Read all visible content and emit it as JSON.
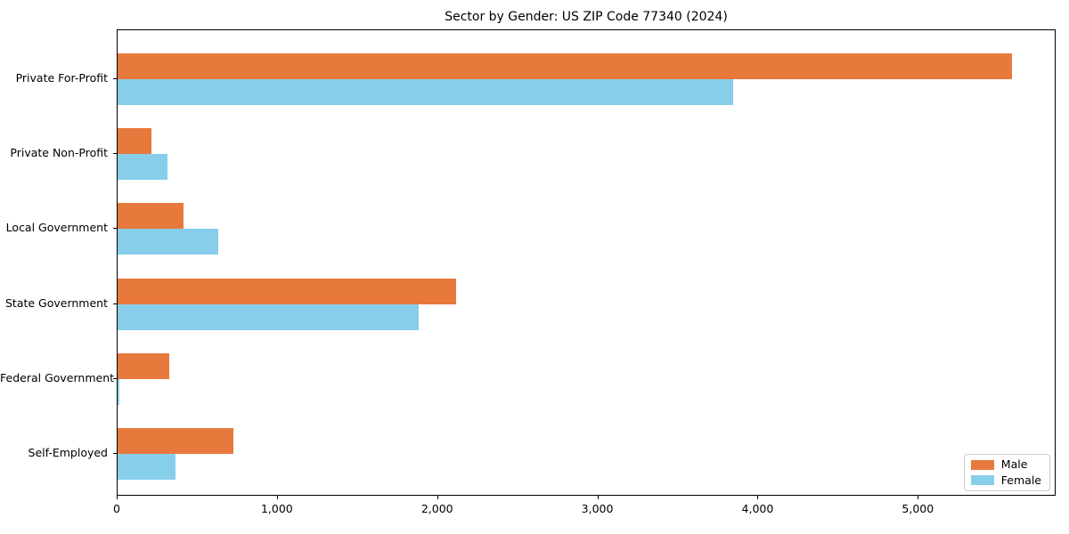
{
  "chart_data": {
    "type": "bar",
    "orientation": "horizontal",
    "title": "Sector by Gender: US ZIP Code 77340 (2024)",
    "categories": [
      "Private For-Profit",
      "Private Non-Profit",
      "Local Government",
      "State Government",
      "Federal Government",
      "Self-Employed"
    ],
    "series": [
      {
        "name": "Male",
        "color": "#E8793D",
        "values": [
          5580,
          210,
          410,
          2110,
          320,
          720
        ]
      },
      {
        "name": "Female",
        "color": "#87CEEB",
        "values": [
          3840,
          310,
          630,
          1880,
          10,
          360
        ]
      }
    ],
    "xlabel": "",
    "ylabel": "",
    "xlim": [
      0,
      5860
    ],
    "xticks": [
      0,
      1000,
      2000,
      3000,
      4000,
      5000
    ],
    "xtick_labels": [
      "0",
      "1,000",
      "2,000",
      "3,000",
      "4,000",
      "5,000"
    ],
    "grid": false,
    "legend": {
      "position": "lower right",
      "entries": [
        "Male",
        "Female"
      ]
    },
    "colors": {
      "axis": "#000000",
      "background": "#ffffff",
      "legend_border": "#cccccc"
    }
  }
}
